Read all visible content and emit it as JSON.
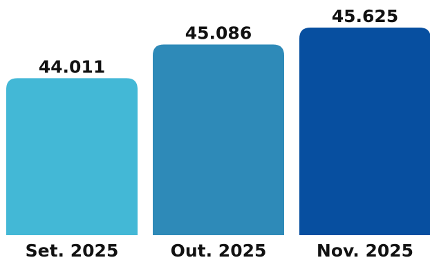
{
  "chart_data": {
    "type": "bar",
    "categories": [
      "Set. 2025",
      "Out. 2025",
      "Nov. 2025"
    ],
    "values": [
      44011,
      45086,
      45625
    ],
    "data_labels": [
      "44.011",
      "45.086",
      "45.625"
    ],
    "colors": [
      "#43b8d6",
      "#2e8ab8",
      "#074fa0"
    ],
    "grid": false,
    "legend": "none"
  }
}
